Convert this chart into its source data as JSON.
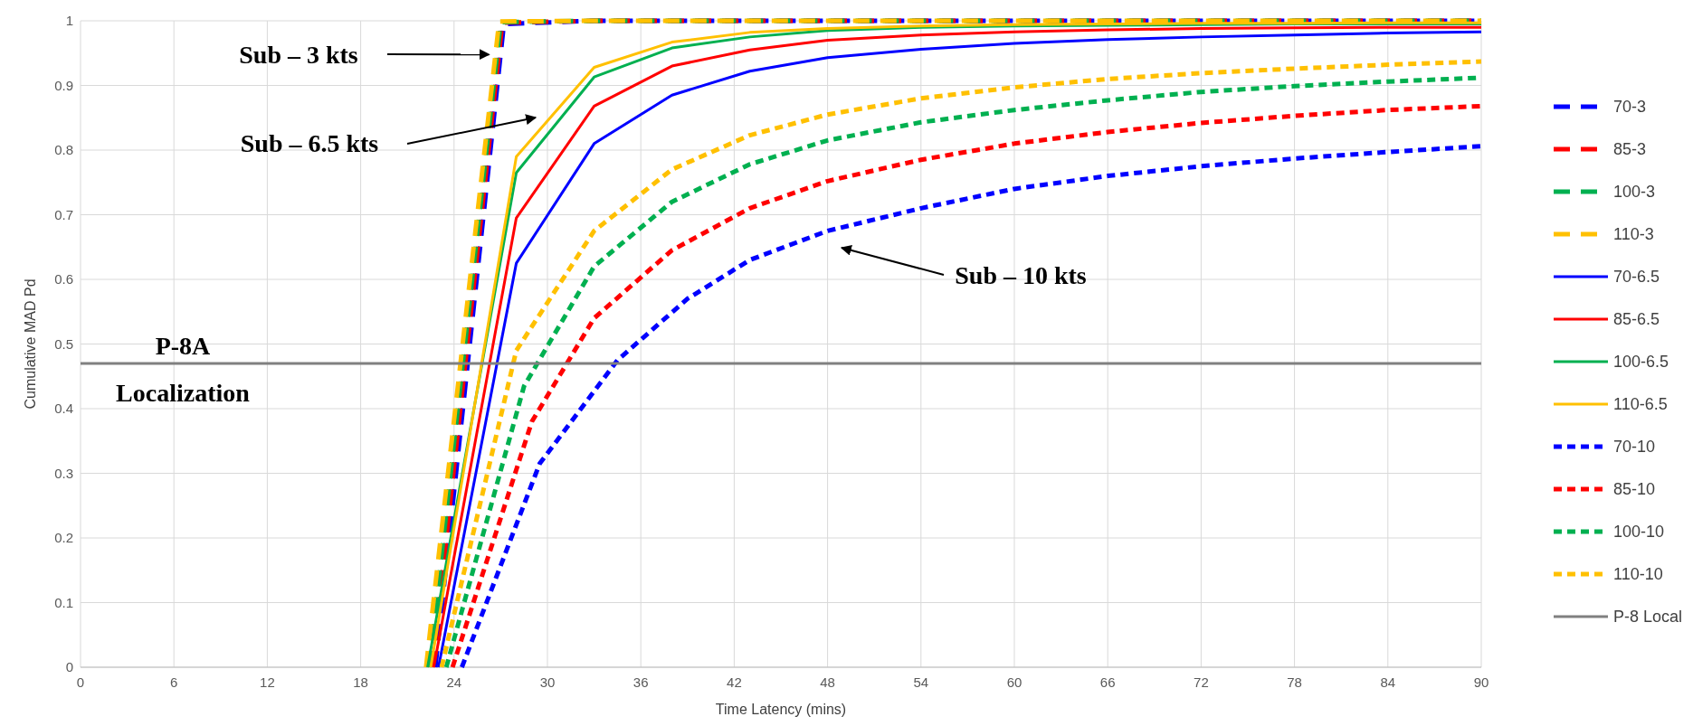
{
  "chart_data": {
    "type": "line",
    "xlabel": "Time Latency (mins)",
    "ylabel": "Cumulative MAD Pd",
    "xlim": [
      0,
      90
    ],
    "xticks": [
      0,
      6,
      12,
      18,
      24,
      30,
      36,
      42,
      48,
      54,
      60,
      66,
      72,
      78,
      84,
      90
    ],
    "ylim": [
      0,
      1
    ],
    "yticks": [
      0,
      0.1,
      0.2,
      0.3,
      0.4,
      0.5,
      0.6,
      0.7,
      0.8,
      0.9,
      1
    ],
    "grid": true,
    "legend": "right",
    "marker": "none",
    "series": [
      {
        "name": "70-3",
        "color": "#0000ff",
        "line_style": "dashed",
        "x": [
          22.8,
          27.2,
          33,
          90
        ],
        "values": [
          0,
          0.995,
          1,
          1
        ]
      },
      {
        "name": "85-3",
        "color": "#ff0000",
        "line_style": "dashed",
        "x": [
          22.6,
          27.1,
          33,
          90
        ],
        "values": [
          0,
          0.997,
          1,
          1
        ]
      },
      {
        "name": "100-3",
        "color": "#00b050",
        "line_style": "dashed",
        "x": [
          22.4,
          27.0,
          33,
          90
        ],
        "values": [
          0,
          0.998,
          1,
          1
        ]
      },
      {
        "name": "110-3",
        "color": "#ffc000",
        "line_style": "dashed",
        "x": [
          22.2,
          26.9,
          33,
          90
        ],
        "values": [
          0,
          0.999,
          1,
          1
        ]
      },
      {
        "name": "70-6.5",
        "color": "#0000ff",
        "line_style": "solid",
        "x": [
          23,
          28,
          33,
          38,
          43,
          48,
          54,
          60,
          66,
          72,
          78,
          84,
          90
        ],
        "values": [
          0,
          0.625,
          0.81,
          0.885,
          0.922,
          0.943,
          0.956,
          0.965,
          0.971,
          0.975,
          0.978,
          0.981,
          0.983
        ]
      },
      {
        "name": "85-6.5",
        "color": "#ff0000",
        "line_style": "solid",
        "x": [
          22.7,
          28,
          33,
          38,
          43,
          48,
          54,
          60,
          66,
          72,
          78,
          84,
          90
        ],
        "values": [
          0,
          0.695,
          0.868,
          0.93,
          0.955,
          0.97,
          0.978,
          0.983,
          0.986,
          0.988,
          0.989,
          0.99,
          0.99
        ]
      },
      {
        "name": "100-6.5",
        "color": "#00b050",
        "line_style": "solid",
        "x": [
          22.3,
          28,
          33,
          38,
          43,
          48,
          54,
          60,
          66,
          72,
          78,
          84,
          90
        ],
        "values": [
          0,
          0.765,
          0.913,
          0.958,
          0.975,
          0.985,
          0.99,
          0.992,
          0.993,
          0.994,
          0.995,
          0.995,
          0.995
        ]
      },
      {
        "name": "110-6.5",
        "color": "#ffc000",
        "line_style": "solid",
        "x": [
          22.5,
          28,
          33,
          38,
          43,
          48,
          54,
          60,
          66,
          72,
          78,
          84,
          90
        ],
        "values": [
          0,
          0.79,
          0.928,
          0.967,
          0.982,
          0.988,
          0.992,
          0.994,
          0.995,
          0.996,
          0.996,
          0.997,
          0.997
        ]
      },
      {
        "name": "70-10",
        "color": "#0000ff",
        "line_style": "dotted",
        "x": [
          24.5,
          29.5,
          34.5,
          39,
          43,
          48,
          54,
          60,
          66,
          72,
          78,
          84,
          90
        ],
        "values": [
          0,
          0.315,
          0.475,
          0.57,
          0.63,
          0.675,
          0.71,
          0.74,
          0.76,
          0.775,
          0.787,
          0.797,
          0.806
        ]
      },
      {
        "name": "85-10",
        "color": "#ff0000",
        "line_style": "dotted",
        "x": [
          23.9,
          29,
          33,
          38,
          43,
          48,
          54,
          60,
          66,
          72,
          78,
          84,
          90
        ],
        "values": [
          0,
          0.38,
          0.54,
          0.645,
          0.71,
          0.752,
          0.785,
          0.81,
          0.828,
          0.842,
          0.853,
          0.862,
          0.868
        ]
      },
      {
        "name": "100-10",
        "color": "#00b050",
        "line_style": "dotted",
        "x": [
          23.5,
          28.5,
          33,
          38,
          43,
          48,
          54,
          60,
          66,
          72,
          78,
          84,
          90
        ],
        "values": [
          0,
          0.435,
          0.62,
          0.72,
          0.778,
          0.815,
          0.843,
          0.862,
          0.877,
          0.89,
          0.899,
          0.906,
          0.912
        ]
      },
      {
        "name": "110-10",
        "color": "#ffc000",
        "line_style": "dotted",
        "x": [
          23.2,
          28,
          33,
          38,
          43,
          48,
          54,
          60,
          66,
          72,
          78,
          84,
          90
        ],
        "values": [
          0,
          0.49,
          0.675,
          0.77,
          0.823,
          0.855,
          0.88,
          0.897,
          0.91,
          0.919,
          0.926,
          0.932,
          0.937
        ]
      },
      {
        "name": "P-8 Local",
        "color": "#808080",
        "line_style": "solid",
        "x": [
          0,
          90
        ],
        "values": [
          0.47,
          0.47
        ]
      }
    ],
    "annotations": [
      {
        "text": "Sub – 3 kts",
        "x": 26.6,
        "y": 0.948
      },
      "Sub – 6.5 kts",
      "Sub – 10 kts",
      "P-8A Localization"
    ]
  }
}
